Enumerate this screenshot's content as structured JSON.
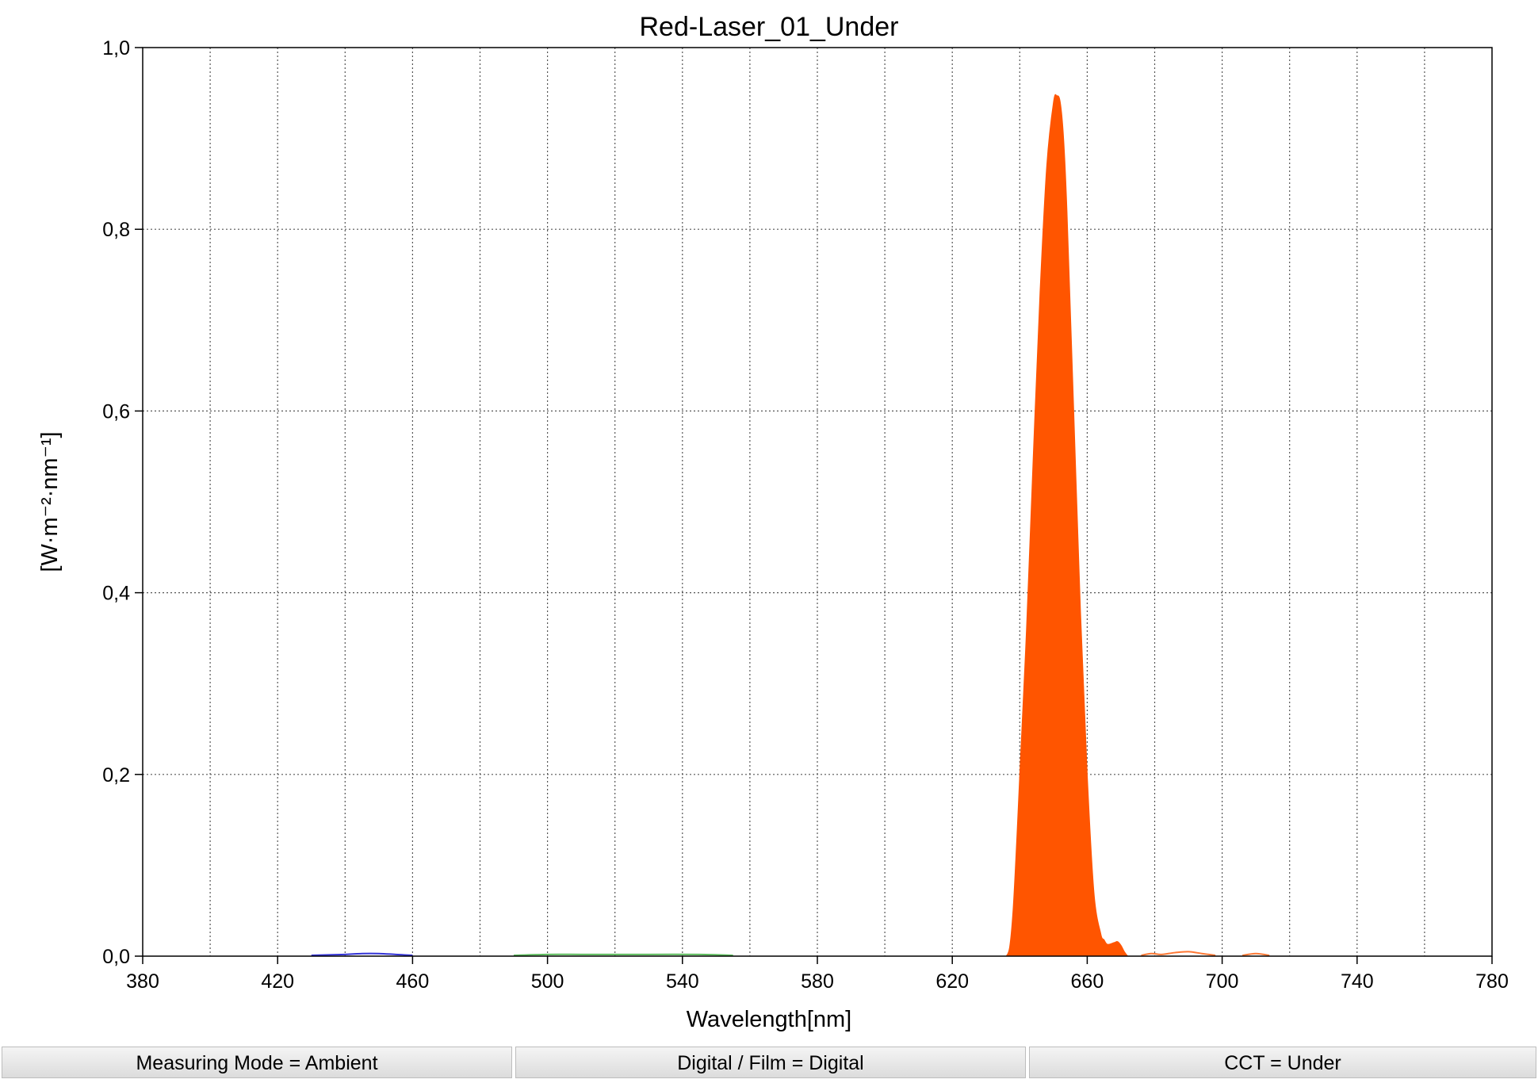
{
  "chart_data": {
    "type": "area",
    "title": "Red-Laser_01_Under",
    "xlabel": "Wavelength[nm]",
    "ylabel": "[W·m⁻²·nm⁻¹]",
    "xlim": [
      380,
      780
    ],
    "ylim": [
      0,
      1.0
    ],
    "x_ticks": [
      "380",
      "420",
      "460",
      "500",
      "540",
      "580",
      "620",
      "660",
      "700",
      "740",
      "780"
    ],
    "y_ticks": [
      "0,0",
      "0,2",
      "0,4",
      "0,6",
      "0,8",
      "1,0"
    ],
    "grid": true,
    "fill_color": "#ff5500",
    "series": [
      {
        "x": [
          636,
          637,
          638,
          639,
          640,
          642,
          644,
          646,
          648,
          650,
          651,
          652,
          653,
          654,
          656,
          658,
          660,
          662,
          664,
          665,
          666,
          668,
          669,
          670,
          671,
          672
        ],
        "y": [
          0.0,
          0.01,
          0.05,
          0.12,
          0.2,
          0.36,
          0.55,
          0.73,
          0.87,
          0.94,
          0.947,
          0.94,
          0.9,
          0.82,
          0.6,
          0.38,
          0.2,
          0.07,
          0.025,
          0.018,
          0.013,
          0.015,
          0.016,
          0.012,
          0.005,
          0.0
        ]
      }
    ],
    "minor_series": [
      {
        "color": "#0000cc",
        "x": [
          430,
          440,
          445,
          450,
          455,
          460
        ],
        "y": [
          0,
          0.001,
          0.002,
          0.002,
          0.001,
          0
        ]
      },
      {
        "color": "#33aa33",
        "x": [
          490,
          500,
          510,
          520,
          530,
          545,
          555
        ],
        "y": [
          0,
          0.001,
          0.001,
          0.001,
          0.001,
          0.001,
          0
        ]
      },
      {
        "color": "#ff5500",
        "x": [
          676,
          679,
          682,
          686,
          690,
          694,
          698
        ],
        "y": [
          0,
          0.002,
          0.001,
          0.003,
          0.004,
          0.002,
          0
        ]
      },
      {
        "color": "#ff5500",
        "x": [
          706,
          710,
          714
        ],
        "y": [
          0,
          0.002,
          0
        ]
      }
    ]
  },
  "status_bar": [
    {
      "label": "Measuring Mode = Ambient"
    },
    {
      "label": "Digital / Film = Digital"
    },
    {
      "label": "CCT = Under"
    }
  ]
}
